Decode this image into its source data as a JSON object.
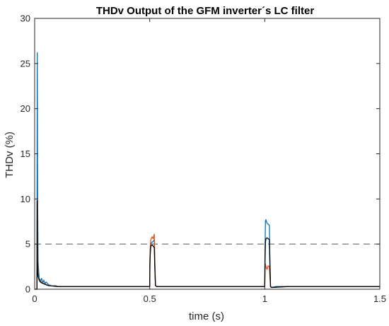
{
  "chart_data": {
    "type": "line",
    "title": "THDv Output of the GFM inverter´s LC filter",
    "xlabel": "time (s)",
    "ylabel": "THDv (%)",
    "xlim": [
      0,
      1.5
    ],
    "ylim": [
      0,
      30
    ],
    "xticks": [
      0,
      0.5,
      1,
      1.5
    ],
    "xtick_labels": [
      "0",
      "0.5",
      "1",
      "1.5"
    ],
    "yticks": [
      0,
      5,
      10,
      15,
      20,
      25,
      30
    ],
    "ytick_labels": [
      "0",
      "5",
      "10",
      "15",
      "20",
      "25",
      "30"
    ],
    "grid": false,
    "legend": "none",
    "reference_line": {
      "y": 5,
      "style": "dashed",
      "color": "#555555"
    },
    "series": [
      {
        "color": "#0072BD",
        "x": [
          0,
          0.01,
          0.011,
          0.0115,
          0.012,
          0.013,
          0.015,
          0.018,
          0.02,
          0.025,
          0.03,
          0.035,
          0.04,
          0.045,
          0.05,
          0.06,
          0.07,
          0.08,
          0.09,
          0.1,
          0.12,
          0.15,
          0.2,
          0.25,
          0.3,
          0.35,
          0.4,
          0.45,
          0.49,
          0.5,
          0.501,
          0.503,
          0.505,
          0.51,
          0.515,
          0.52,
          0.522,
          0.525,
          0.53,
          0.55,
          0.6,
          0.7,
          0.8,
          0.9,
          0.98,
          0.995,
          1.0,
          1.001,
          1.003,
          1.005,
          1.01,
          1.015,
          1.02,
          1.022,
          1.025,
          1.03,
          1.05,
          1.1,
          1.2,
          1.3,
          1.4,
          1.5
        ],
        "y": [
          0,
          0,
          20.2,
          26.2,
          20.5,
          10.0,
          3.0,
          1.8,
          1.2,
          0.9,
          1.2,
          0.7,
          1.0,
          0.6,
          0.8,
          0.5,
          0.4,
          0.35,
          0.4,
          0.3,
          0.3,
          0.3,
          0.3,
          0.3,
          0.3,
          0.3,
          0.3,
          0.3,
          0.3,
          0.3,
          3.0,
          4.5,
          5.0,
          5.2,
          5.3,
          5.5,
          3.0,
          0.4,
          0.3,
          0.3,
          0.3,
          0.3,
          0.3,
          0.3,
          0.3,
          0.3,
          0.3,
          4.0,
          7.5,
          7.7,
          7.3,
          7.2,
          7.1,
          4.0,
          0.3,
          0.2,
          0.3,
          0.3,
          0.3,
          0.3,
          0.3,
          0.3
        ]
      },
      {
        "color": "#D95319",
        "x": [
          0,
          0.01,
          0.011,
          0.0115,
          0.012,
          0.013,
          0.015,
          0.02,
          0.03,
          0.04,
          0.05,
          0.06,
          0.08,
          0.1,
          0.15,
          0.2,
          0.3,
          0.4,
          0.5,
          0.501,
          0.503,
          0.505,
          0.51,
          0.515,
          0.52,
          0.522,
          0.525,
          0.53,
          0.6,
          0.8,
          1.0,
          1.001,
          1.003,
          1.005,
          1.01,
          1.015,
          1.02,
          1.022,
          1.025,
          1.03,
          1.1,
          1.3,
          1.5
        ],
        "y": [
          0,
          0,
          10.0,
          9.5,
          6.0,
          3.0,
          1.5,
          1.0,
          0.8,
          0.6,
          0.5,
          0.4,
          0.35,
          0.3,
          0.3,
          0.3,
          0.3,
          0.3,
          0.3,
          3.5,
          5.0,
          5.5,
          5.8,
          5.6,
          6.1,
          3.5,
          0.4,
          0.3,
          0.3,
          0.3,
          0.3,
          2.0,
          2.8,
          2.5,
          2.2,
          2.6,
          2.5,
          1.5,
          0.3,
          0.2,
          0.3,
          0.3,
          0.3
        ]
      },
      {
        "color": "#000000",
        "x": [
          0,
          0.01,
          0.011,
          0.0115,
          0.012,
          0.013,
          0.015,
          0.02,
          0.025,
          0.03,
          0.04,
          0.05,
          0.06,
          0.08,
          0.1,
          0.15,
          0.2,
          0.3,
          0.4,
          0.5,
          0.501,
          0.503,
          0.505,
          0.51,
          0.515,
          0.52,
          0.522,
          0.525,
          0.53,
          0.6,
          0.8,
          1.0,
          1.001,
          1.003,
          1.005,
          1.01,
          1.015,
          1.02,
          1.022,
          1.025,
          1.03,
          1.1,
          1.3,
          1.5
        ],
        "y": [
          0,
          0,
          9.8,
          6.0,
          3.5,
          2.0,
          1.4,
          1.0,
          0.8,
          0.7,
          0.6,
          0.5,
          0.4,
          0.35,
          0.3,
          0.3,
          0.3,
          0.3,
          0.3,
          0.3,
          3.0,
          4.2,
          4.8,
          4.9,
          4.8,
          4.6,
          2.5,
          0.4,
          0.3,
          0.3,
          0.3,
          0.3,
          3.0,
          5.2,
          5.6,
          5.7,
          5.6,
          5.5,
          3.0,
          0.3,
          0.2,
          0.3,
          0.3,
          0.3
        ]
      }
    ]
  }
}
